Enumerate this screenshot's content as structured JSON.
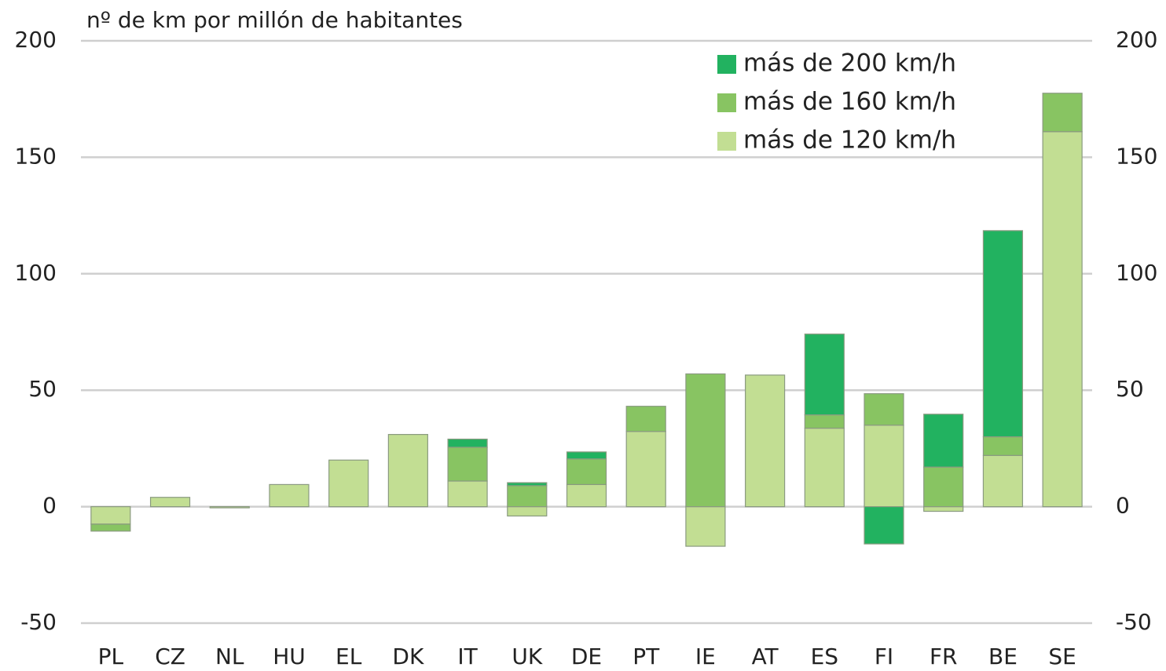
{
  "chart_data": {
    "type": "bar",
    "stacked": true,
    "y_label": "nº de km por millón de habitantes",
    "categories": [
      "PL",
      "CZ",
      "NL",
      "HU",
      "EL",
      "DK",
      "IT",
      "UK",
      "DE",
      "PT",
      "IE",
      "AT",
      "ES",
      "FI",
      "FR",
      "BE",
      "SE"
    ],
    "series": [
      {
        "name": "más de 120 km/h",
        "color": "#c2de93",
        "values": [
          -7.5,
          4,
          -0.5,
          9.5,
          20,
          31,
          11,
          -4,
          9.5,
          32.3,
          -17,
          56.5,
          33.7,
          35,
          -2,
          22,
          161
        ]
      },
      {
        "name": "más de 160 km/h",
        "color": "#88c462",
        "values": [
          -3,
          0,
          0,
          0,
          0,
          0,
          14.5,
          9,
          11,
          10.8,
          57,
          0,
          5.7,
          13.5,
          17,
          8,
          16.5
        ]
      },
      {
        "name": "más de 200 km/h",
        "color": "#22b260",
        "values": [
          0,
          0,
          0,
          0,
          0,
          0,
          3.5,
          1.3,
          3,
          0,
          0,
          0,
          34.7,
          -16,
          22.7,
          88.5,
          0
        ]
      }
    ],
    "ylim": [
      -50,
      200
    ],
    "yticks": [
      -50,
      0,
      50,
      100,
      150,
      200
    ],
    "y2lim": [
      -50,
      200
    ],
    "y2ticks": [
      -50,
      0,
      50,
      100,
      150,
      200
    ],
    "grid": true,
    "legend": "top-right"
  }
}
